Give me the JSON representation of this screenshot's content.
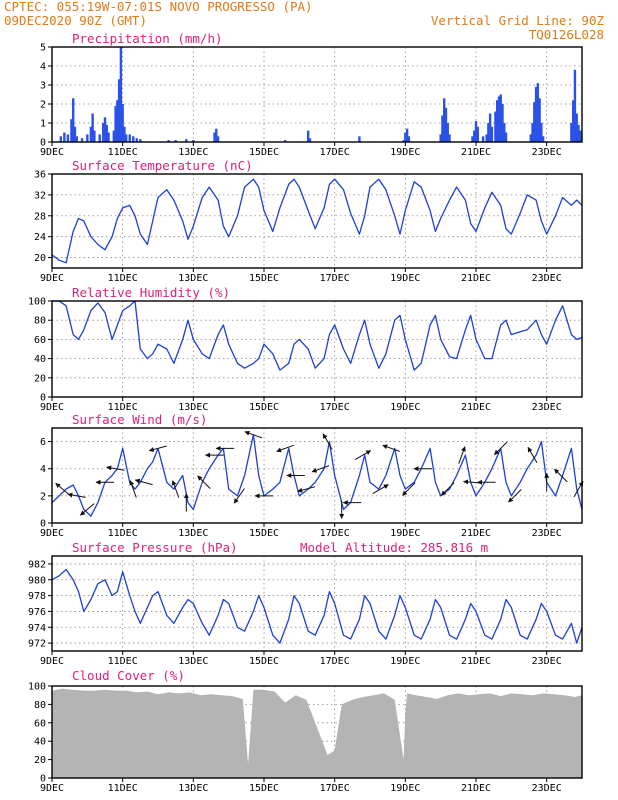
{
  "header": {
    "line1_left": "CPTEC:   055:19W-07:01S  NOVO PROGRESSO (PA)",
    "line2_left": "09DEC2020 90Z (GMT)",
    "line2_right": "Vertical Grid Line: 90Z",
    "line3_right": "TQ0126L028"
  },
  "colors": {
    "header": "#e07b17",
    "title": "#e0207a",
    "series": "#1f3fd6",
    "bars": "#2a52e6",
    "cloud": "#b4b4b4",
    "arrow": "#111111"
  },
  "chart_data": [
    {
      "type": "bar",
      "title": "Precipitation (mm/h)",
      "ylim": [
        0,
        5
      ],
      "yticks": [
        "0",
        "1",
        "2",
        "3",
        "4",
        "5"
      ],
      "xlim": [
        9,
        24
      ],
      "xticks": [
        "9DEC",
        "11DEC",
        "13DEC",
        "15DEC",
        "17DEC",
        "19DEC",
        "21DEC",
        "23DEC"
      ],
      "bars": [
        [
          9.25,
          0.3
        ],
        [
          9.35,
          0.5
        ],
        [
          9.45,
          0.4
        ],
        [
          9.55,
          1.2
        ],
        [
          9.6,
          2.3
        ],
        [
          9.65,
          0.8
        ],
        [
          9.7,
          0.3
        ],
        [
          9.85,
          0.2
        ],
        [
          10.0,
          0.4
        ],
        [
          10.1,
          0.8
        ],
        [
          10.15,
          1.5
        ],
        [
          10.2,
          0.6
        ],
        [
          10.35,
          0.4
        ],
        [
          10.45,
          1.0
        ],
        [
          10.5,
          1.3
        ],
        [
          10.55,
          0.9
        ],
        [
          10.6,
          0.5
        ],
        [
          10.75,
          0.6
        ],
        [
          10.8,
          1.9
        ],
        [
          10.85,
          2.2
        ],
        [
          10.9,
          3.3
        ],
        [
          10.95,
          5.0
        ],
        [
          11.0,
          2.0
        ],
        [
          11.05,
          0.8
        ],
        [
          11.1,
          0.4
        ],
        [
          11.2,
          0.4
        ],
        [
          11.3,
          0.3
        ],
        [
          11.4,
          0.2
        ],
        [
          11.5,
          0.15
        ],
        [
          12.3,
          0.1
        ],
        [
          12.5,
          0.1
        ],
        [
          12.8,
          0.15
        ],
        [
          13.0,
          0.1
        ],
        [
          13.6,
          0.5
        ],
        [
          13.65,
          0.7
        ],
        [
          13.7,
          0.3
        ],
        [
          15.6,
          0.1
        ],
        [
          16.25,
          0.6
        ],
        [
          16.3,
          0.2
        ],
        [
          17.7,
          0.3
        ],
        [
          18.95,
          0.1
        ],
        [
          19.0,
          0.5
        ],
        [
          19.05,
          0.7
        ],
        [
          19.1,
          0.3
        ],
        [
          20.0,
          0.4
        ],
        [
          20.05,
          1.4
        ],
        [
          20.1,
          2.3
        ],
        [
          20.15,
          1.8
        ],
        [
          20.2,
          1.0
        ],
        [
          20.25,
          0.4
        ],
        [
          20.9,
          0.3
        ],
        [
          20.95,
          0.6
        ],
        [
          21.0,
          1.1
        ],
        [
          21.05,
          0.8
        ],
        [
          21.2,
          0.3
        ],
        [
          21.3,
          0.4
        ],
        [
          21.35,
          1.0
        ],
        [
          21.4,
          1.5
        ],
        [
          21.45,
          0.8
        ],
        [
          21.55,
          1.6
        ],
        [
          21.6,
          2.2
        ],
        [
          21.65,
          2.4
        ],
        [
          21.7,
          2.5
        ],
        [
          21.75,
          2.0
        ],
        [
          21.8,
          1.0
        ],
        [
          21.85,
          0.5
        ],
        [
          22.55,
          0.4
        ],
        [
          22.6,
          1.0
        ],
        [
          22.65,
          2.1
        ],
        [
          22.7,
          2.9
        ],
        [
          22.75,
          3.1
        ],
        [
          22.8,
          2.3
        ],
        [
          22.85,
          1.0
        ],
        [
          22.9,
          0.3
        ],
        [
          23.7,
          1.0
        ],
        [
          23.75,
          2.2
        ],
        [
          23.8,
          3.8
        ],
        [
          23.85,
          1.5
        ],
        [
          23.9,
          0.9
        ],
        [
          23.95,
          0.6
        ]
      ]
    },
    {
      "type": "line",
      "title": "Surface Temperature (nC)",
      "ylim": [
        18,
        36
      ],
      "yticks": [
        "20",
        "24",
        "28",
        "32",
        "36"
      ],
      "xlim": [
        9,
        24
      ],
      "xticks": [
        "9DEC",
        "11DEC",
        "13DEC",
        "15DEC",
        "17DEC",
        "19DEC",
        "21DEC",
        "23DEC"
      ],
      "x": [
        9.0,
        9.2,
        9.4,
        9.6,
        9.75,
        9.9,
        10.1,
        10.3,
        10.5,
        10.7,
        10.85,
        11.0,
        11.2,
        11.35,
        11.5,
        11.7,
        11.85,
        12.0,
        12.25,
        12.45,
        12.7,
        12.85,
        13.0,
        13.25,
        13.45,
        13.7,
        13.85,
        14.0,
        14.25,
        14.45,
        14.7,
        14.85,
        15.0,
        15.25,
        15.45,
        15.7,
        15.85,
        16.0,
        16.25,
        16.45,
        16.7,
        16.85,
        17.0,
        17.25,
        17.45,
        17.7,
        17.85,
        18.0,
        18.25,
        18.45,
        18.7,
        18.85,
        19.0,
        19.25,
        19.45,
        19.7,
        19.85,
        20.0,
        20.25,
        20.45,
        20.7,
        20.85,
        21.0,
        21.25,
        21.45,
        21.7,
        21.85,
        22.0,
        22.25,
        22.45,
        22.7,
        22.85,
        23.0,
        23.25,
        23.45,
        23.7,
        23.85,
        24.0
      ],
      "y": [
        20.5,
        19.5,
        19.0,
        25.0,
        27.5,
        27.0,
        24.0,
        22.5,
        21.5,
        24.0,
        27.5,
        29.5,
        30.0,
        28.0,
        24.5,
        22.5,
        27.0,
        31.5,
        33.0,
        31.0,
        27.0,
        23.5,
        26.0,
        31.5,
        33.5,
        31.0,
        26.0,
        24.0,
        28.0,
        33.5,
        35.0,
        33.5,
        29.0,
        25.0,
        29.5,
        34.0,
        35.0,
        33.5,
        29.0,
        25.5,
        29.5,
        34.0,
        35.0,
        33.0,
        28.5,
        24.5,
        28.0,
        33.5,
        35.0,
        33.0,
        28.0,
        24.5,
        29.0,
        34.5,
        33.5,
        29.0,
        25.0,
        27.5,
        31.0,
        33.5,
        31.0,
        26.5,
        25.0,
        29.5,
        32.5,
        30.0,
        25.5,
        24.5,
        28.5,
        32.0,
        31.0,
        27.0,
        24.5,
        28.0,
        31.5,
        30.0,
        31.0,
        30.0
      ]
    },
    {
      "type": "line",
      "title": "Relative Humidity (%)",
      "ylim": [
        0,
        100
      ],
      "yticks": [
        "0",
        "20",
        "40",
        "60",
        "80",
        "100"
      ],
      "xlim": [
        9,
        24
      ],
      "xticks": [
        "9DEC",
        "11DEC",
        "13DEC",
        "15DEC",
        "17DEC",
        "19DEC",
        "21DEC",
        "23DEC"
      ],
      "x": [
        9.0,
        9.2,
        9.4,
        9.6,
        9.75,
        9.9,
        10.1,
        10.3,
        10.5,
        10.7,
        10.85,
        11.0,
        11.2,
        11.35,
        11.5,
        11.7,
        11.85,
        12.0,
        12.25,
        12.45,
        12.7,
        12.85,
        13.0,
        13.25,
        13.45,
        13.7,
        13.85,
        14.0,
        14.25,
        14.45,
        14.7,
        14.85,
        15.0,
        15.25,
        15.45,
        15.7,
        15.85,
        16.0,
        16.25,
        16.45,
        16.7,
        16.85,
        17.0,
        17.25,
        17.45,
        17.7,
        17.85,
        18.0,
        18.25,
        18.45,
        18.7,
        18.85,
        19.0,
        19.25,
        19.45,
        19.7,
        19.85,
        20.0,
        20.25,
        20.45,
        20.7,
        20.85,
        21.0,
        21.25,
        21.45,
        21.7,
        21.85,
        22.0,
        22.25,
        22.45,
        22.7,
        22.85,
        23.0,
        23.25,
        23.45,
        23.7,
        23.85,
        24.0
      ],
      "y": [
        100,
        100,
        95,
        65,
        60,
        70,
        90,
        98,
        88,
        60,
        75,
        90,
        95,
        100,
        50,
        40,
        45,
        55,
        50,
        35,
        60,
        80,
        60,
        45,
        40,
        65,
        75,
        55,
        35,
        30,
        35,
        40,
        55,
        45,
        28,
        35,
        55,
        60,
        50,
        30,
        40,
        65,
        75,
        50,
        35,
        65,
        80,
        55,
        30,
        45,
        80,
        85,
        60,
        28,
        35,
        75,
        85,
        60,
        42,
        40,
        70,
        85,
        60,
        40,
        40,
        75,
        80,
        65,
        68,
        70,
        80,
        65,
        55,
        80,
        95,
        65,
        60,
        62
      ]
    },
    {
      "type": "line",
      "title": "Surface Wind (m/s)",
      "ylim": [
        0,
        7
      ],
      "yticks": [
        "0",
        "2",
        "4",
        "6"
      ],
      "xlim": [
        9,
        24
      ],
      "xticks": [
        "9DEC",
        "11DEC",
        "13DEC",
        "15DEC",
        "17DEC",
        "19DEC",
        "21DEC",
        "23DEC"
      ],
      "x": [
        9.0,
        9.2,
        9.4,
        9.6,
        9.75,
        9.9,
        10.1,
        10.3,
        10.5,
        10.7,
        10.85,
        11.0,
        11.2,
        11.35,
        11.5,
        11.7,
        11.85,
        12.0,
        12.25,
        12.45,
        12.7,
        12.85,
        13.0,
        13.25,
        13.45,
        13.7,
        13.85,
        14.0,
        14.25,
        14.45,
        14.7,
        14.85,
        15.0,
        15.25,
        15.45,
        15.7,
        15.85,
        16.0,
        16.25,
        16.45,
        16.7,
        16.85,
        17.0,
        17.25,
        17.45,
        17.7,
        17.85,
        18.0,
        18.25,
        18.45,
        18.7,
        18.85,
        19.0,
        19.25,
        19.45,
        19.7,
        19.85,
        20.0,
        20.25,
        20.45,
        20.7,
        20.85,
        21.0,
        21.25,
        21.45,
        21.7,
        21.85,
        22.0,
        22.25,
        22.45,
        22.7,
        22.85,
        23.0,
        23.25,
        23.45,
        23.7,
        23.85,
        24.0
      ],
      "y": [
        1.5,
        2.0,
        2.5,
        2.8,
        2.0,
        1.0,
        0.5,
        1.5,
        3.0,
        3.5,
        4.0,
        5.5,
        3.0,
        2.5,
        3.0,
        4.0,
        4.5,
        5.5,
        3.0,
        2.5,
        3.5,
        1.5,
        1.0,
        3.0,
        4.0,
        5.0,
        5.5,
        2.5,
        2.0,
        3.5,
        6.5,
        3.5,
        2.0,
        2.5,
        3.0,
        5.5,
        3.5,
        2.0,
        2.5,
        3.0,
        4.0,
        6.0,
        3.5,
        1.0,
        1.5,
        3.5,
        5.0,
        3.0,
        2.5,
        3.5,
        5.5,
        3.5,
        2.5,
        3.0,
        4.0,
        5.5,
        3.0,
        2.0,
        2.5,
        3.5,
        5.0,
        3.0,
        2.0,
        3.0,
        4.0,
        5.5,
        3.0,
        2.0,
        3.0,
        4.0,
        5.0,
        6.0,
        3.0,
        2.0,
        3.5,
        5.5,
        2.5,
        1.0
      ]
    },
    {
      "type": "line",
      "title": "Surface Pressure (hPa)",
      "annotation": "Model Altitude: 285.816  m",
      "ylim": [
        971,
        983
      ],
      "yticks": [
        "972",
        "974",
        "976",
        "978",
        "980",
        "982"
      ],
      "xlim": [
        9,
        24
      ],
      "xticks": [
        "9DEC",
        "11DEC",
        "13DEC",
        "15DEC",
        "17DEC",
        "19DEC",
        "21DEC",
        "23DEC"
      ],
      "x": [
        9.0,
        9.2,
        9.4,
        9.6,
        9.75,
        9.9,
        10.1,
        10.3,
        10.5,
        10.7,
        10.85,
        11.0,
        11.2,
        11.35,
        11.5,
        11.7,
        11.85,
        12.0,
        12.25,
        12.45,
        12.7,
        12.85,
        13.0,
        13.25,
        13.45,
        13.7,
        13.85,
        14.0,
        14.25,
        14.45,
        14.7,
        14.85,
        15.0,
        15.25,
        15.45,
        15.7,
        15.85,
        16.0,
        16.25,
        16.45,
        16.7,
        16.85,
        17.0,
        17.25,
        17.45,
        17.7,
        17.85,
        18.0,
        18.25,
        18.45,
        18.7,
        18.85,
        19.0,
        19.25,
        19.45,
        19.7,
        19.85,
        20.0,
        20.25,
        20.45,
        20.7,
        20.85,
        21.0,
        21.25,
        21.45,
        21.7,
        21.85,
        22.0,
        22.25,
        22.45,
        22.7,
        22.85,
        23.0,
        23.25,
        23.45,
        23.7,
        23.85,
        24.0
      ],
      "y": [
        980.0,
        980.5,
        981.3,
        980.0,
        978.5,
        976.0,
        977.5,
        979.5,
        980.0,
        978.0,
        978.5,
        981.0,
        978.0,
        976.0,
        974.5,
        976.5,
        978.0,
        978.5,
        975.5,
        974.5,
        976.5,
        977.5,
        977.0,
        974.5,
        973.0,
        975.5,
        977.5,
        977.0,
        974.0,
        973.5,
        976.0,
        978.0,
        976.5,
        973.0,
        972.0,
        975.0,
        978.0,
        977.0,
        973.5,
        973.0,
        975.5,
        978.5,
        977.0,
        973.0,
        972.5,
        975.0,
        978.0,
        977.0,
        973.5,
        972.5,
        975.5,
        978.0,
        976.5,
        973.0,
        972.5,
        975.0,
        977.5,
        976.5,
        973.0,
        972.5,
        975.0,
        977.0,
        976.0,
        973.0,
        972.5,
        975.0,
        977.5,
        976.5,
        973.0,
        972.5,
        975.0,
        977.0,
        976.0,
        973.0,
        972.5,
        974.5,
        972.0,
        974.0
      ]
    },
    {
      "type": "area",
      "title": "Cloud Cover (%)",
      "ylim": [
        0,
        100
      ],
      "yticks": [
        "0",
        "20",
        "40",
        "60",
        "80",
        "100"
      ],
      "xlim": [
        9,
        24
      ],
      "xticks": [
        "9DEC",
        "11DEC",
        "13DEC",
        "15DEC",
        "17DEC",
        "19DEC",
        "21DEC",
        "23DEC"
      ],
      "x": [
        9.0,
        9.3,
        9.6,
        9.9,
        10.2,
        10.5,
        10.8,
        11.1,
        11.4,
        11.7,
        12.0,
        12.3,
        12.6,
        12.9,
        13.2,
        13.5,
        13.8,
        14.1,
        14.4,
        14.55,
        14.7,
        15.0,
        15.3,
        15.6,
        15.9,
        16.2,
        16.5,
        16.8,
        17.0,
        17.2,
        17.5,
        17.8,
        18.1,
        18.4,
        18.7,
        18.95,
        19.0,
        19.05,
        19.3,
        19.6,
        19.9,
        20.2,
        20.5,
        20.8,
        21.1,
        21.4,
        21.7,
        22.0,
        22.3,
        22.6,
        22.9,
        23.2,
        23.5,
        23.8,
        24.0
      ],
      "y": [
        95,
        97,
        96,
        95,
        95,
        96,
        95,
        95,
        93,
        94,
        91,
        93,
        92,
        93,
        90,
        91,
        90,
        89,
        86,
        15,
        96,
        96,
        94,
        82,
        90,
        85,
        55,
        25,
        30,
        80,
        85,
        88,
        90,
        92,
        85,
        20,
        70,
        92,
        90,
        88,
        86,
        90,
        92,
        90,
        91,
        92,
        89,
        92,
        91,
        90,
        92,
        91,
        90,
        88,
        90
      ]
    }
  ],
  "wind_arrows": [
    {
      "t": 9.3,
      "deg": 140
    },
    {
      "t": 9.7,
      "deg": 170
    },
    {
      "t": 10.0,
      "deg": 220
    },
    {
      "t": 10.5,
      "deg": 180
    },
    {
      "t": 10.8,
      "deg": 170
    },
    {
      "t": 11.3,
      "deg": 110
    },
    {
      "t": 11.6,
      "deg": 165
    },
    {
      "t": 12.0,
      "deg": 195
    },
    {
      "t": 12.5,
      "deg": 110
    },
    {
      "t": 12.8,
      "deg": 90
    },
    {
      "t": 13.3,
      "deg": 135
    },
    {
      "t": 13.6,
      "deg": 180
    },
    {
      "t": 13.9,
      "deg": 180
    },
    {
      "t": 14.3,
      "deg": 235
    },
    {
      "t": 14.7,
      "deg": 160
    },
    {
      "t": 15.0,
      "deg": 180
    },
    {
      "t": 15.6,
      "deg": 200
    },
    {
      "t": 15.9,
      "deg": 180
    },
    {
      "t": 16.2,
      "deg": 195
    },
    {
      "t": 16.6,
      "deg": 200
    },
    {
      "t": 16.8,
      "deg": 120
    },
    {
      "t": 17.2,
      "deg": 270
    },
    {
      "t": 17.5,
      "deg": 180
    },
    {
      "t": 17.8,
      "deg": 30
    },
    {
      "t": 18.3,
      "deg": 30
    },
    {
      "t": 18.6,
      "deg": 160
    },
    {
      "t": 19.1,
      "deg": 225
    },
    {
      "t": 19.5,
      "deg": 180
    },
    {
      "t": 20.2,
      "deg": 225
    },
    {
      "t": 20.6,
      "deg": 70
    },
    {
      "t": 20.9,
      "deg": 175
    },
    {
      "t": 21.3,
      "deg": 180
    },
    {
      "t": 21.7,
      "deg": 225
    },
    {
      "t": 22.1,
      "deg": 225
    },
    {
      "t": 22.6,
      "deg": 120
    },
    {
      "t": 23.0,
      "deg": 90
    },
    {
      "t": 23.4,
      "deg": 135
    },
    {
      "t": 23.9,
      "deg": 60
    }
  ]
}
